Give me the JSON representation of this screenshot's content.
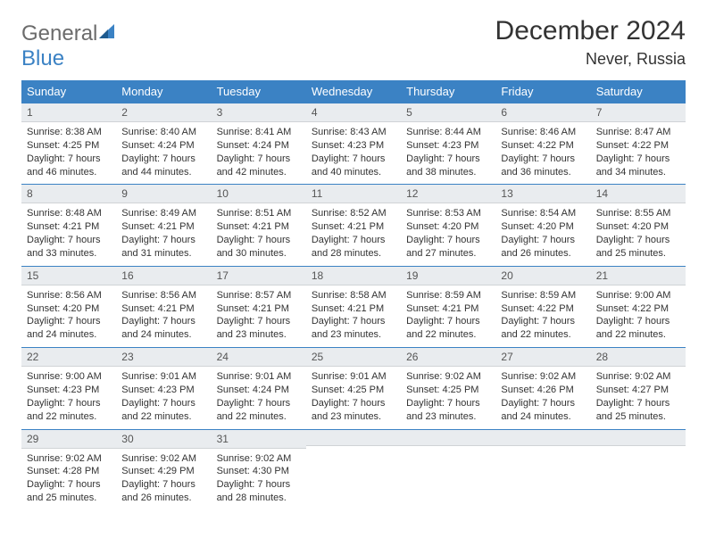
{
  "brand": {
    "general": "General",
    "blue": "Blue"
  },
  "title": "December 2024",
  "location": "Never, Russia",
  "colors": {
    "header_bg": "#3b82c4",
    "header_text": "#ffffff",
    "daynum_bg": "#e9ecef",
    "border": "#3b82c4",
    "body_text": "#333333",
    "logo_gray": "#6b6b6b",
    "logo_blue": "#3b82c4"
  },
  "weekdays": [
    "Sunday",
    "Monday",
    "Tuesday",
    "Wednesday",
    "Thursday",
    "Friday",
    "Saturday"
  ],
  "weeks": [
    [
      {
        "n": "1",
        "sr": "Sunrise: 8:38 AM",
        "ss": "Sunset: 4:25 PM",
        "d1": "Daylight: 7 hours",
        "d2": "and 46 minutes."
      },
      {
        "n": "2",
        "sr": "Sunrise: 8:40 AM",
        "ss": "Sunset: 4:24 PM",
        "d1": "Daylight: 7 hours",
        "d2": "and 44 minutes."
      },
      {
        "n": "3",
        "sr": "Sunrise: 8:41 AM",
        "ss": "Sunset: 4:24 PM",
        "d1": "Daylight: 7 hours",
        "d2": "and 42 minutes."
      },
      {
        "n": "4",
        "sr": "Sunrise: 8:43 AM",
        "ss": "Sunset: 4:23 PM",
        "d1": "Daylight: 7 hours",
        "d2": "and 40 minutes."
      },
      {
        "n": "5",
        "sr": "Sunrise: 8:44 AM",
        "ss": "Sunset: 4:23 PM",
        "d1": "Daylight: 7 hours",
        "d2": "and 38 minutes."
      },
      {
        "n": "6",
        "sr": "Sunrise: 8:46 AM",
        "ss": "Sunset: 4:22 PM",
        "d1": "Daylight: 7 hours",
        "d2": "and 36 minutes."
      },
      {
        "n": "7",
        "sr": "Sunrise: 8:47 AM",
        "ss": "Sunset: 4:22 PM",
        "d1": "Daylight: 7 hours",
        "d2": "and 34 minutes."
      }
    ],
    [
      {
        "n": "8",
        "sr": "Sunrise: 8:48 AM",
        "ss": "Sunset: 4:21 PM",
        "d1": "Daylight: 7 hours",
        "d2": "and 33 minutes."
      },
      {
        "n": "9",
        "sr": "Sunrise: 8:49 AM",
        "ss": "Sunset: 4:21 PM",
        "d1": "Daylight: 7 hours",
        "d2": "and 31 minutes."
      },
      {
        "n": "10",
        "sr": "Sunrise: 8:51 AM",
        "ss": "Sunset: 4:21 PM",
        "d1": "Daylight: 7 hours",
        "d2": "and 30 minutes."
      },
      {
        "n": "11",
        "sr": "Sunrise: 8:52 AM",
        "ss": "Sunset: 4:21 PM",
        "d1": "Daylight: 7 hours",
        "d2": "and 28 minutes."
      },
      {
        "n": "12",
        "sr": "Sunrise: 8:53 AM",
        "ss": "Sunset: 4:20 PM",
        "d1": "Daylight: 7 hours",
        "d2": "and 27 minutes."
      },
      {
        "n": "13",
        "sr": "Sunrise: 8:54 AM",
        "ss": "Sunset: 4:20 PM",
        "d1": "Daylight: 7 hours",
        "d2": "and 26 minutes."
      },
      {
        "n": "14",
        "sr": "Sunrise: 8:55 AM",
        "ss": "Sunset: 4:20 PM",
        "d1": "Daylight: 7 hours",
        "d2": "and 25 minutes."
      }
    ],
    [
      {
        "n": "15",
        "sr": "Sunrise: 8:56 AM",
        "ss": "Sunset: 4:20 PM",
        "d1": "Daylight: 7 hours",
        "d2": "and 24 minutes."
      },
      {
        "n": "16",
        "sr": "Sunrise: 8:56 AM",
        "ss": "Sunset: 4:21 PM",
        "d1": "Daylight: 7 hours",
        "d2": "and 24 minutes."
      },
      {
        "n": "17",
        "sr": "Sunrise: 8:57 AM",
        "ss": "Sunset: 4:21 PM",
        "d1": "Daylight: 7 hours",
        "d2": "and 23 minutes."
      },
      {
        "n": "18",
        "sr": "Sunrise: 8:58 AM",
        "ss": "Sunset: 4:21 PM",
        "d1": "Daylight: 7 hours",
        "d2": "and 23 minutes."
      },
      {
        "n": "19",
        "sr": "Sunrise: 8:59 AM",
        "ss": "Sunset: 4:21 PM",
        "d1": "Daylight: 7 hours",
        "d2": "and 22 minutes."
      },
      {
        "n": "20",
        "sr": "Sunrise: 8:59 AM",
        "ss": "Sunset: 4:22 PM",
        "d1": "Daylight: 7 hours",
        "d2": "and 22 minutes."
      },
      {
        "n": "21",
        "sr": "Sunrise: 9:00 AM",
        "ss": "Sunset: 4:22 PM",
        "d1": "Daylight: 7 hours",
        "d2": "and 22 minutes."
      }
    ],
    [
      {
        "n": "22",
        "sr": "Sunrise: 9:00 AM",
        "ss": "Sunset: 4:23 PM",
        "d1": "Daylight: 7 hours",
        "d2": "and 22 minutes."
      },
      {
        "n": "23",
        "sr": "Sunrise: 9:01 AM",
        "ss": "Sunset: 4:23 PM",
        "d1": "Daylight: 7 hours",
        "d2": "and 22 minutes."
      },
      {
        "n": "24",
        "sr": "Sunrise: 9:01 AM",
        "ss": "Sunset: 4:24 PM",
        "d1": "Daylight: 7 hours",
        "d2": "and 22 minutes."
      },
      {
        "n": "25",
        "sr": "Sunrise: 9:01 AM",
        "ss": "Sunset: 4:25 PM",
        "d1": "Daylight: 7 hours",
        "d2": "and 23 minutes."
      },
      {
        "n": "26",
        "sr": "Sunrise: 9:02 AM",
        "ss": "Sunset: 4:25 PM",
        "d1": "Daylight: 7 hours",
        "d2": "and 23 minutes."
      },
      {
        "n": "27",
        "sr": "Sunrise: 9:02 AM",
        "ss": "Sunset: 4:26 PM",
        "d1": "Daylight: 7 hours",
        "d2": "and 24 minutes."
      },
      {
        "n": "28",
        "sr": "Sunrise: 9:02 AM",
        "ss": "Sunset: 4:27 PM",
        "d1": "Daylight: 7 hours",
        "d2": "and 25 minutes."
      }
    ],
    [
      {
        "n": "29",
        "sr": "Sunrise: 9:02 AM",
        "ss": "Sunset: 4:28 PM",
        "d1": "Daylight: 7 hours",
        "d2": "and 25 minutes."
      },
      {
        "n": "30",
        "sr": "Sunrise: 9:02 AM",
        "ss": "Sunset: 4:29 PM",
        "d1": "Daylight: 7 hours",
        "d2": "and 26 minutes."
      },
      {
        "n": "31",
        "sr": "Sunrise: 9:02 AM",
        "ss": "Sunset: 4:30 PM",
        "d1": "Daylight: 7 hours",
        "d2": "and 28 minutes."
      },
      {
        "n": "",
        "sr": "",
        "ss": "",
        "d1": "",
        "d2": ""
      },
      {
        "n": "",
        "sr": "",
        "ss": "",
        "d1": "",
        "d2": ""
      },
      {
        "n": "",
        "sr": "",
        "ss": "",
        "d1": "",
        "d2": ""
      },
      {
        "n": "",
        "sr": "",
        "ss": "",
        "d1": "",
        "d2": ""
      }
    ]
  ]
}
